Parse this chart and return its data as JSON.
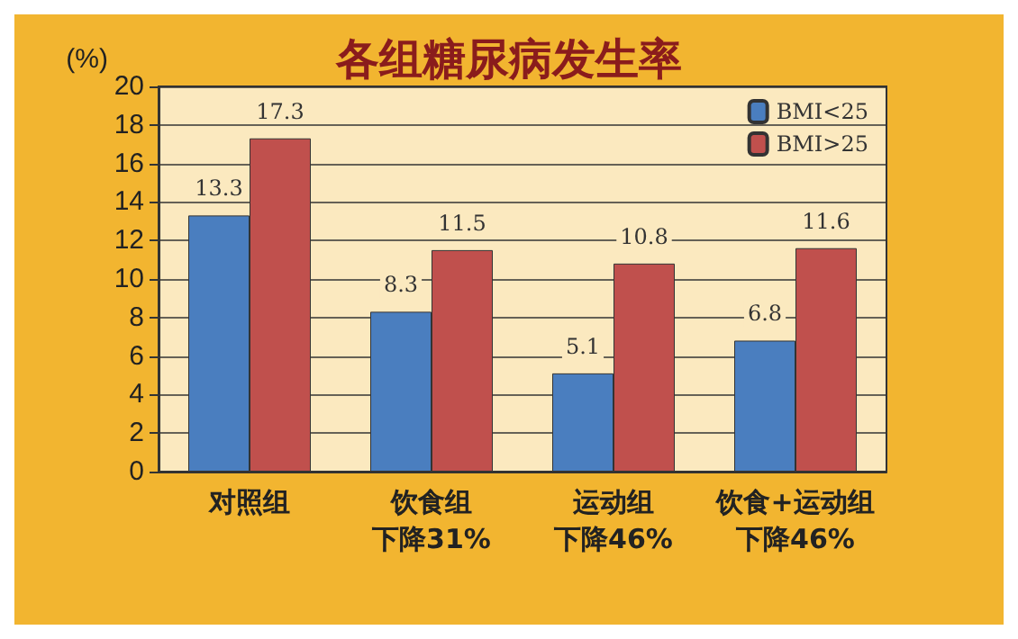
{
  "chart_data": {
    "type": "bar",
    "title": "各组糖尿病发生率",
    "ylabel": "(%)",
    "categories": [
      "对照组",
      "饮食组",
      "运动组",
      "饮食+运动组"
    ],
    "annotations": [
      "下降31%",
      "下降46%",
      "下降46%"
    ],
    "series": [
      {
        "name": "BMI<25",
        "color": "#4a7ebf",
        "values": [
          13.3,
          8.3,
          5.1,
          6.8
        ]
      },
      {
        "name": "BMI>25",
        "color": "#c0504d",
        "values": [
          17.3,
          11.5,
          10.8,
          11.6
        ]
      }
    ],
    "ylim": [
      0,
      20
    ],
    "yticks": [
      0,
      2,
      4,
      6,
      8,
      10,
      12,
      14,
      16,
      18,
      20
    ],
    "grid": "y",
    "legend": "top right",
    "data_labels": true
  }
}
